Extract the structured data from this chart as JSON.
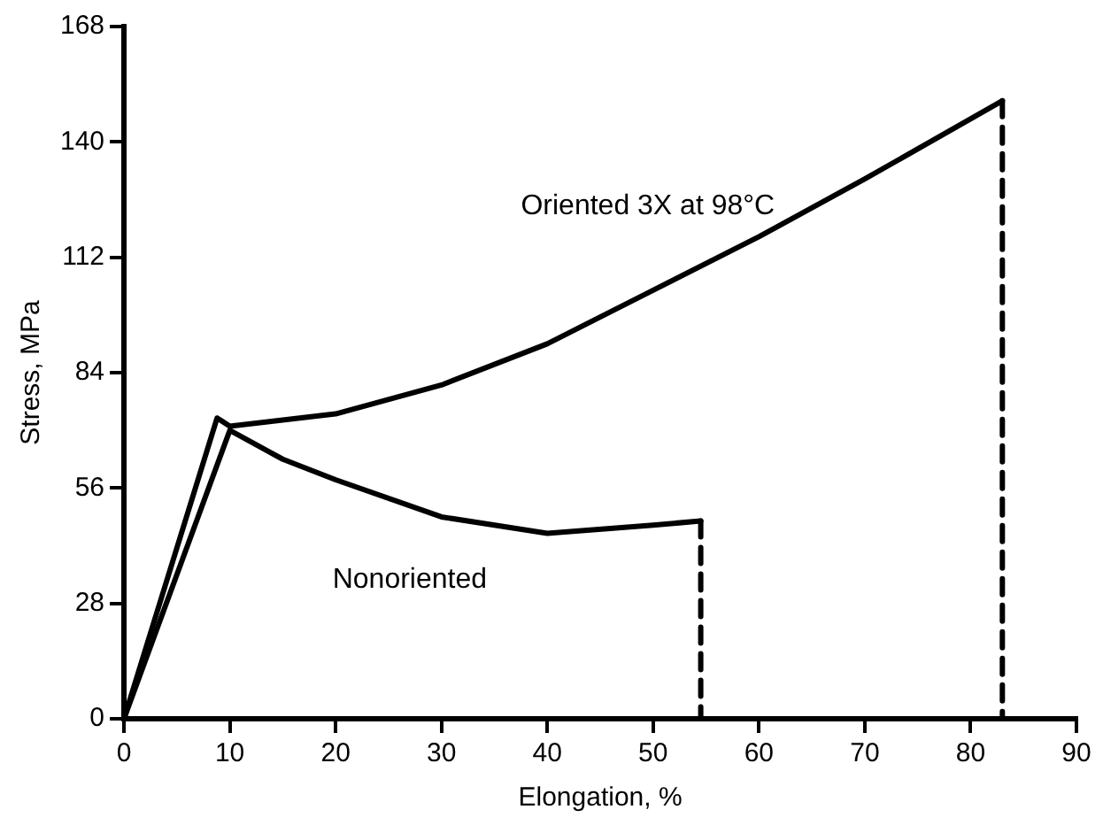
{
  "chart_data": {
    "type": "line",
    "xlabel": "Elongation, %",
    "ylabel": "Stress, MPa",
    "xlim": [
      0,
      90
    ],
    "xticks": [
      0,
      10,
      20,
      30,
      40,
      50,
      60,
      70,
      80,
      90
    ],
    "ylim": [
      0,
      168
    ],
    "yticks": [
      0,
      28,
      56,
      84,
      112,
      140,
      168
    ],
    "grid": false,
    "legend": false,
    "marker": "none",
    "series": [
      {
        "color": "#000000",
        "line_style": "solid",
        "x": [
          0,
          8.8,
          10,
          20,
          30,
          40,
          50,
          60,
          70,
          83
        ],
        "values": [
          0,
          73,
          71,
          74,
          81,
          91,
          104,
          117,
          131,
          150
        ]
      },
      {
        "color": "#000000",
        "line_style": "dashed",
        "x": [
          83,
          83
        ],
        "values": [
          150,
          0
        ]
      },
      {
        "color": "#000000",
        "line_style": "solid",
        "x": [
          0,
          10,
          15,
          20,
          30,
          40,
          50,
          54.5
        ],
        "values": [
          0,
          70,
          63,
          58,
          49,
          45,
          47,
          48
        ]
      },
      {
        "color": "#000000",
        "line_style": "dashed",
        "x": [
          54.5,
          54.5
        ],
        "values": [
          48,
          0
        ]
      }
    ],
    "annotations": [
      "Oriented 3X at 98°C",
      "Nonoriented"
    ]
  }
}
